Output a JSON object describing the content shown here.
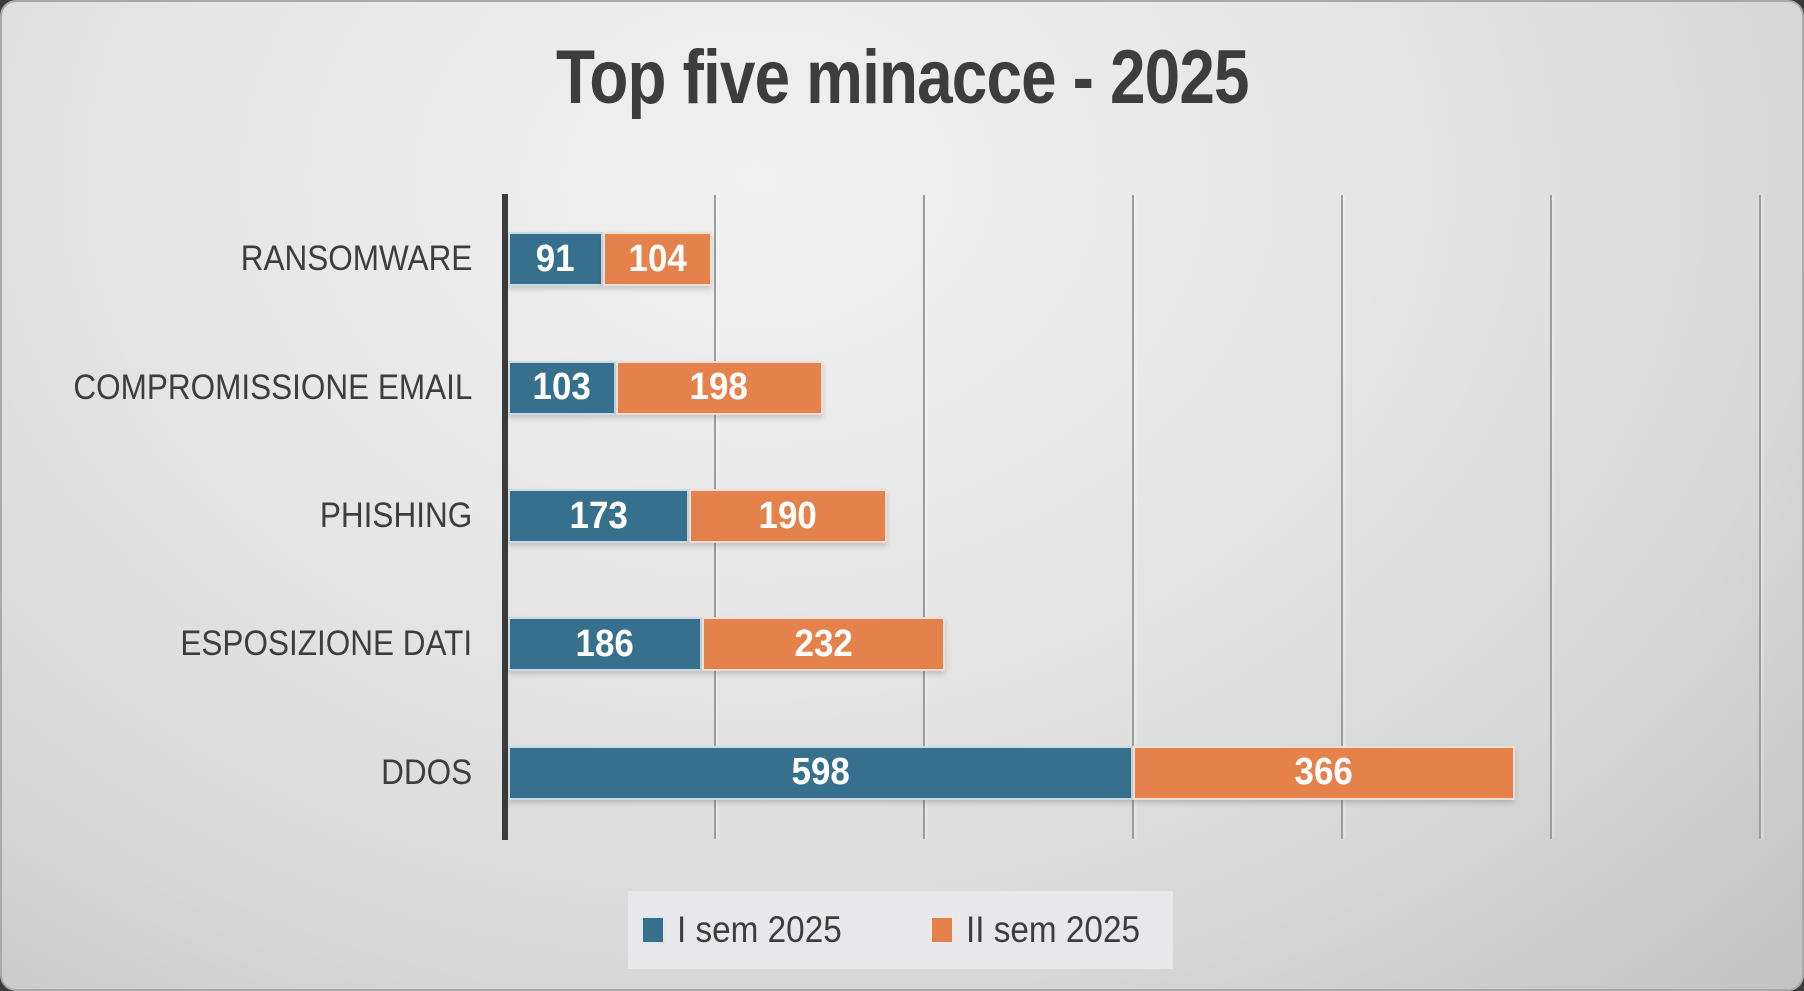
{
  "title": "Top five minacce - 2025",
  "chart_data": {
    "type": "bar",
    "orientation": "horizontal",
    "stacked": true,
    "title": "Top five minacce - 2025",
    "categories": [
      "RANSOMWARE",
      "COMPROMISSIONE EMAIL",
      "PHISHING",
      "ESPOSIZIONE DATI",
      "DDOS"
    ],
    "series": [
      {
        "name": "I sem 2025",
        "color": "#37708D",
        "values": [
          91,
          103,
          173,
          186,
          598
        ]
      },
      {
        "name": "II sem 2025",
        "color": "#E5824B",
        "values": [
          104,
          198,
          190,
          232,
          366
        ]
      }
    ],
    "totals": [
      195,
      301,
      363,
      418,
      964
    ],
    "value_labels_visible": true,
    "value_label_color": "#ffffff",
    "x_axis": {
      "min": 0,
      "max": 1250,
      "gridline_interval": 200,
      "gridlines": [
        200,
        400,
        600,
        800,
        1000,
        1200
      ],
      "tick_labels_visible": false
    },
    "legend": {
      "position": "bottom",
      "entries": [
        "I sem 2025",
        "II sem 2025"
      ]
    }
  },
  "colors": {
    "series_1": "#37708D",
    "series_2": "#E5824B",
    "axis_line": "#3c3c3c",
    "gridline": "#9d9d9d",
    "text": "#3d3d3d",
    "background_light": "#f1f1f1",
    "background_dark": "#c2c2c2",
    "legend_background": "#e8e8ea"
  }
}
